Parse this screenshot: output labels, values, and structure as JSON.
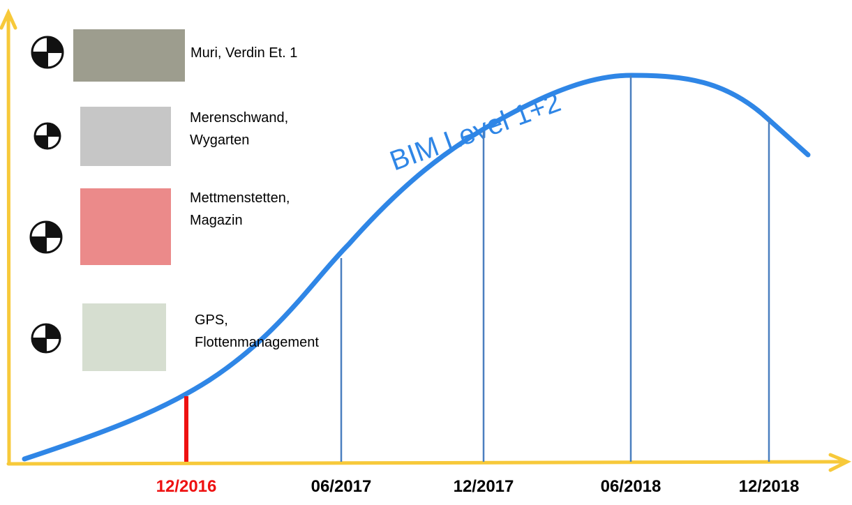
{
  "curve_label": "BIM Level 1+2",
  "milestones": [
    {
      "date": "12/2016",
      "current": true
    },
    {
      "date": "06/2017",
      "current": false
    },
    {
      "date": "12/2017",
      "current": false
    },
    {
      "date": "06/2018",
      "current": false
    },
    {
      "date": "12/2018",
      "current": false
    }
  ],
  "projects": [
    {
      "lines": [
        "Muri, Verdin Et. 1"
      ]
    },
    {
      "lines": [
        "Merenschwand,",
        "Wygarten"
      ]
    },
    {
      "lines": [
        "Mettmenstetten,",
        "Magazin"
      ]
    },
    {
      "lines": [
        "GPS,",
        "Flottenmanagement"
      ]
    }
  ]
}
